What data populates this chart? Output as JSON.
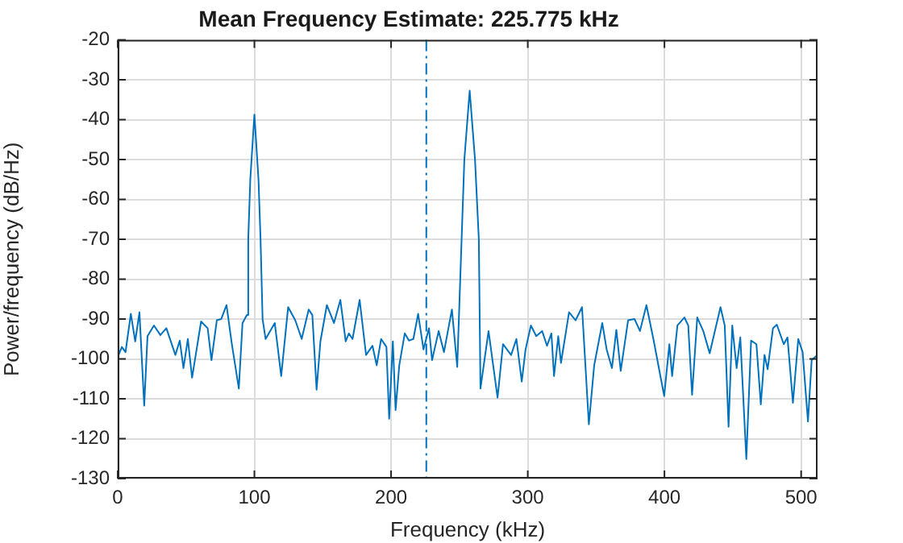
{
  "chart_data": {
    "type": "line",
    "title": "Mean Frequency Estimate: 225.775 kHz",
    "xlabel": "Frequency (kHz)",
    "ylabel": "Power/frequency (dB/Hz)",
    "series": [
      {
        "color": "#0072bd",
        "x": [
          0.2,
          3,
          5.7,
          9.6,
          12.8,
          15.9,
          19.4,
          21.8,
          26.5,
          31.2,
          35.6,
          42.2,
          45.4,
          48.1,
          51.3,
          54.4,
          61,
          65.8,
          68.6,
          72.5,
          75.7,
          79.6,
          83.5,
          88.6,
          91.3,
          94.5,
          95.5,
          97,
          100,
          103,
          104.5,
          106,
          108.2,
          114.9,
          119.6,
          124.7,
          129.9,
          134.6,
          139.7,
          142.4,
          145.5,
          148.3,
          153,
          158.2,
          162.9,
          166.8,
          169.1,
          171.8,
          177,
          181.7,
          186.4,
          189.5,
          192.7,
          196.6,
          198.6,
          201.3,
          203.3,
          206,
          210,
          213.1,
          216.3,
          219.8,
          223.7,
          227.7,
          230,
          234.8,
          238.7,
          244.5,
          248.4,
          251.6,
          253.6,
          257.5,
          261.4,
          264.2,
          265.4,
          271.3,
          277.9,
          281.9,
          287.8,
          291.7,
          295.6,
          298.4,
          302.3,
          306.2,
          310.5,
          314.1,
          317.3,
          319.2,
          322.3,
          324.3,
          330.2,
          335,
          339.7,
          344.7,
          348.6,
          354.5,
          357.7,
          361.6,
          364.8,
          368,
          373.4,
          378.1,
          382.1,
          386.8,
          391.9,
          399.8,
          403.6,
          405.6,
          409.5,
          414.6,
          417.4,
          420.2,
          424,
          428.4,
          433.1,
          441,
          444.1,
          446.9,
          449.6,
          452.8,
          455.5,
          459.9,
          463.4,
          467.3,
          470.5,
          473.2,
          475.5,
          479.4,
          482.2,
          487.3,
          490,
          494,
          497.9,
          501.1,
          505,
          507.7,
          512
        ],
        "values": [
          -99.4,
          -97,
          -98.3,
          -88.7,
          -95.6,
          -88.3,
          -111.7,
          -94.3,
          -91.6,
          -94,
          -92.3,
          -99,
          -95.4,
          -102.3,
          -95,
          -104.7,
          -90.6,
          -92.3,
          -100.3,
          -90.3,
          -90,
          -86.5,
          -96.3,
          -107.4,
          -91,
          -89,
          -70,
          -55,
          -38.7,
          -55,
          -70,
          -90,
          -95,
          -91,
          -104.3,
          -87,
          -90.3,
          -95,
          -87.6,
          -89,
          -107.7,
          -95.6,
          -86.5,
          -91,
          -85.2,
          -95.6,
          -93.6,
          -95,
          -85.2,
          -99,
          -96.7,
          -101.6,
          -95,
          -97,
          -115,
          -95.6,
          -112.8,
          -101.6,
          -93.6,
          -95.4,
          -95,
          -88.7,
          -97.6,
          -92.3,
          -100.3,
          -93,
          -98.3,
          -87.6,
          -102,
          -70,
          -50,
          -32.7,
          -50,
          -70,
          -107.4,
          -93,
          -109.7,
          -96.3,
          -99,
          -95,
          -105.7,
          -97.6,
          -91.6,
          -94.3,
          -93,
          -96.7,
          -93.6,
          -104.3,
          -94.3,
          -101,
          -88.3,
          -90.3,
          -87,
          -116.4,
          -101.6,
          -91,
          -97.6,
          -102.3,
          -92.7,
          -103,
          -90.3,
          -90,
          -93,
          -86.5,
          -95,
          -109.3,
          -96.3,
          -104.3,
          -91.6,
          -89.6,
          -91.6,
          -109,
          -89.6,
          -93,
          -98.6,
          -87,
          -91.6,
          -117,
          -91.6,
          -102.3,
          -94.6,
          -125.1,
          -95.4,
          -96.3,
          -111.4,
          -99,
          -102.6,
          -92.3,
          -91.4,
          -96.3,
          -94.6,
          -111,
          -95,
          -98.3,
          -115.7,
          -100.3,
          -99
        ]
      }
    ],
    "xlim": [
      0,
      512
    ],
    "xticks": [
      0,
      100,
      200,
      300,
      400,
      500
    ],
    "ylim": [
      -130,
      -20
    ],
    "yticks": [
      -130,
      -120,
      -110,
      -100,
      -90,
      -80,
      -70,
      -60,
      -50,
      -40,
      -30,
      -20
    ],
    "grid": true,
    "marker": "none",
    "line_style": "solid",
    "ref_lines": [
      {
        "axis": "x",
        "value": 225.775,
        "color": "#0072bd",
        "line_style": "dashed"
      }
    ]
  }
}
